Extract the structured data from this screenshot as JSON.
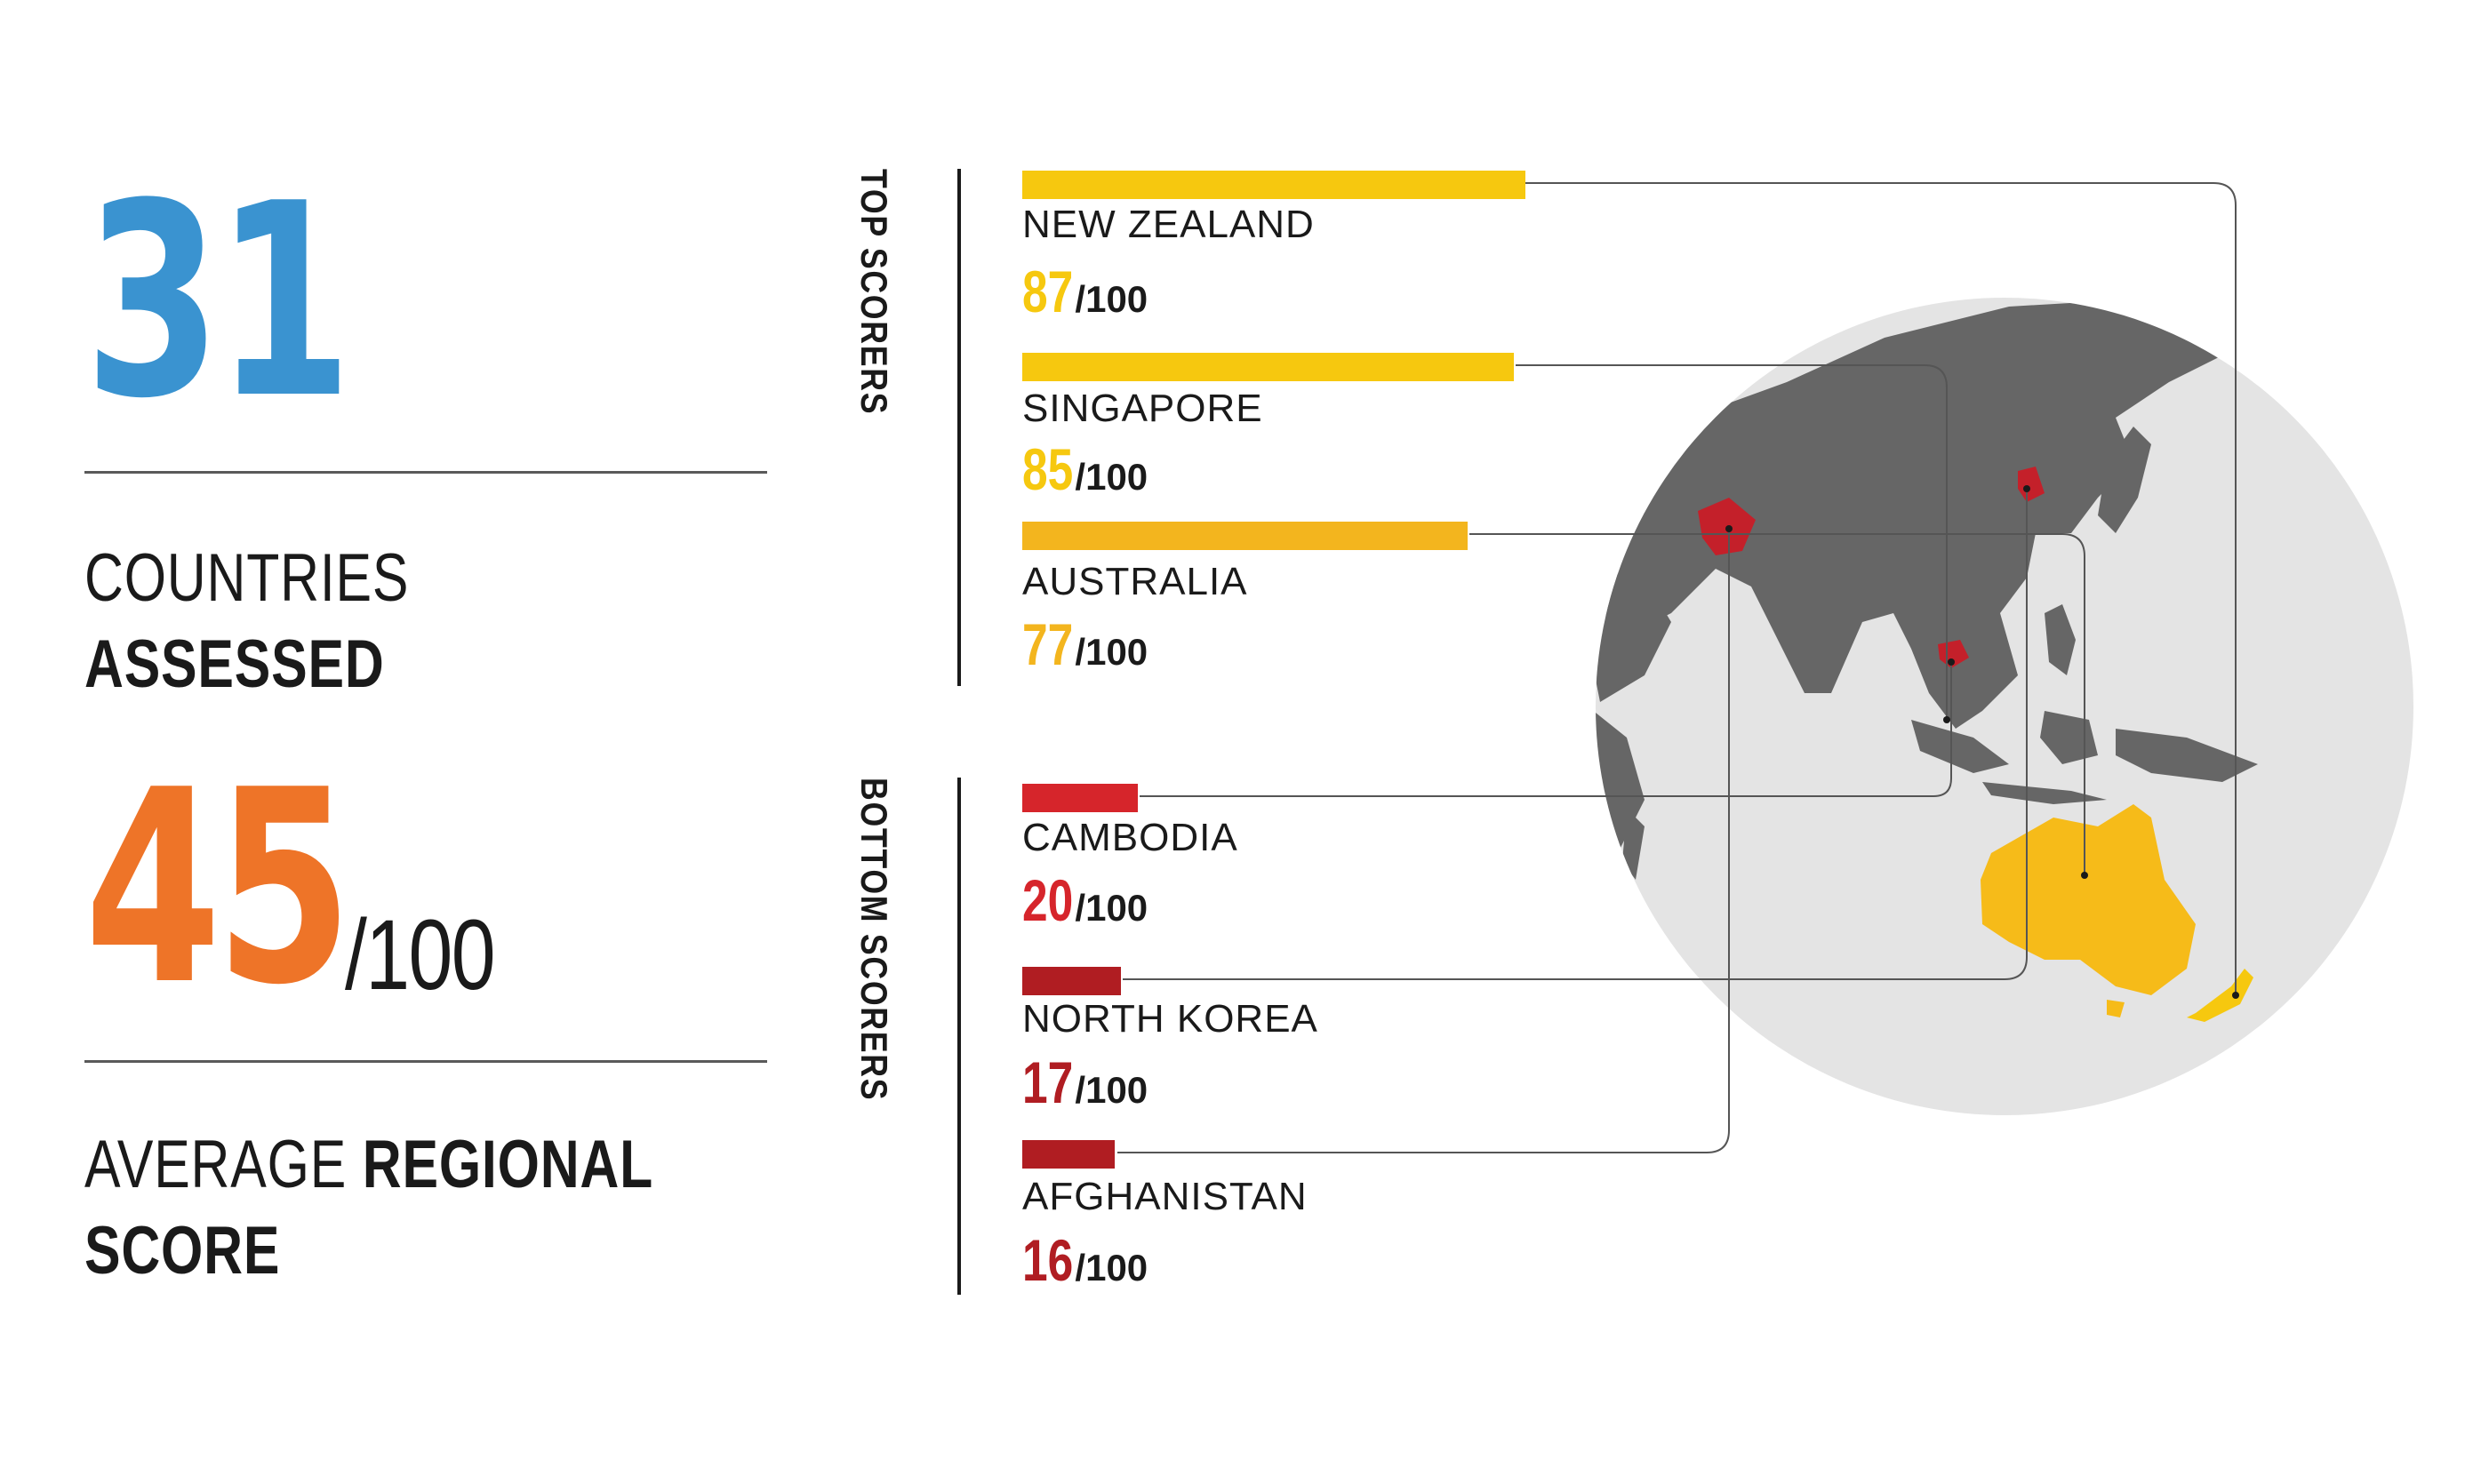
{
  "stats": {
    "countries_assessed": "31",
    "countries_caption_light": "COUNTRIES",
    "countries_caption_bold": "ASSESSED",
    "average_score": "45",
    "average_denominator": "/100",
    "average_caption_light": "AVERAGE",
    "average_caption_bold": "REGIONAL SCORE"
  },
  "colors": {
    "count_blue": "#3a93d0",
    "average_orange": "#ee7428",
    "top_yellow": "#f6c80f",
    "top_yellow_dark": "#f3b51e",
    "bottom_red": "#d6252b",
    "bottom_red_dark": "#b01d22",
    "globe_light": "#e4e4e4",
    "land_dark": "#666666"
  },
  "chart_data": {
    "type": "bar",
    "orientation": "horizontal",
    "xlim": [
      0,
      100
    ],
    "groups": [
      {
        "label": "TOP SCORERS",
        "items": [
          {
            "country": "NEW ZEALAND",
            "value": 87,
            "denominator": "/100"
          },
          {
            "country": "SINGAPORE",
            "value": 85,
            "denominator": "/100"
          },
          {
            "country": "AUSTRALIA",
            "value": 77,
            "denominator": "/100"
          }
        ]
      },
      {
        "label": "BOTTOM SCORERS",
        "items": [
          {
            "country": "CAMBODIA",
            "value": 20,
            "denominator": "/100"
          },
          {
            "country": "NORTH KOREA",
            "value": 17,
            "denominator": "/100"
          },
          {
            "country": "AFGHANISTAN",
            "value": 16,
            "denominator": "/100"
          }
        ]
      }
    ]
  }
}
